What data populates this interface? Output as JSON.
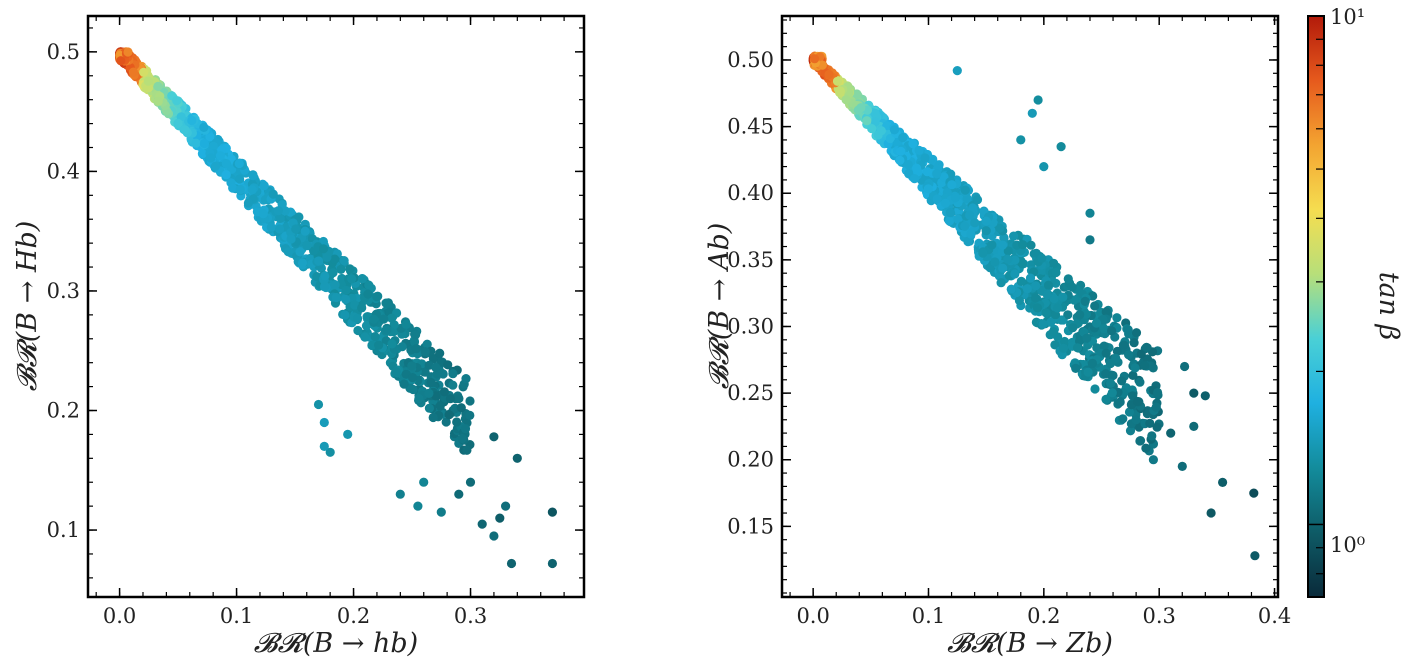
{
  "chart_data": [
    {
      "type": "scatter",
      "id": "left",
      "xlabel": "𝓑𝓡(B → hb)",
      "ylabel": "𝓑𝓡(B → Hb)",
      "xlim": [
        -0.027,
        0.397
      ],
      "ylim": [
        0.044,
        0.53
      ],
      "xticks": [
        0.0,
        0.1,
        0.2,
        0.3
      ],
      "xtick_labels": [
        "0.0",
        "0.1",
        "0.2",
        "0.3"
      ],
      "yticks": [
        0.1,
        0.2,
        0.3,
        0.4,
        0.5
      ],
      "ytick_labels": [
        "0.1",
        "0.2",
        "0.3",
        "0.4",
        "0.5"
      ],
      "constraint": "sum",
      "grid": false,
      "outliers": [
        [
          0.37,
          0.115
        ],
        [
          0.37,
          0.072
        ],
        [
          0.335,
          0.072
        ],
        [
          0.34,
          0.16
        ],
        [
          0.31,
          0.105
        ],
        [
          0.32,
          0.095
        ],
        [
          0.325,
          0.11
        ],
        [
          0.33,
          0.12
        ],
        [
          0.3,
          0.14
        ],
        [
          0.29,
          0.13
        ],
        [
          0.275,
          0.115
        ],
        [
          0.255,
          0.12
        ],
        [
          0.24,
          0.13
        ],
        [
          0.26,
          0.14
        ],
        [
          0.32,
          0.178
        ],
        [
          0.18,
          0.165
        ],
        [
          0.175,
          0.17
        ],
        [
          0.195,
          0.18
        ],
        [
          0.175,
          0.19
        ],
        [
          0.17,
          0.205
        ]
      ]
    },
    {
      "type": "scatter",
      "id": "right",
      "xlabel": "𝓑𝓡(B → Zb)",
      "ylabel": "𝓑𝓡(B → Ab)",
      "xlim": [
        -0.027,
        0.403
      ],
      "ylim": [
        0.097,
        0.533
      ],
      "xticks": [
        0.0,
        0.1,
        0.2,
        0.3,
        0.4
      ],
      "xtick_labels": [
        "0.0",
        "0.1",
        "0.2",
        "0.3",
        "0.4"
      ],
      "yticks": [
        0.15,
        0.2,
        0.25,
        0.3,
        0.35,
        0.4,
        0.45,
        0.5
      ],
      "ytick_labels": [
        "0.15",
        "0.20",
        "0.25",
        "0.30",
        "0.35",
        "0.40",
        "0.45",
        "0.50"
      ],
      "constraint": "spread",
      "grid": false,
      "outliers": [
        [
          0.383,
          0.128
        ],
        [
          0.382,
          0.175
        ],
        [
          0.345,
          0.16
        ],
        [
          0.34,
          0.248
        ],
        [
          0.355,
          0.183
        ],
        [
          0.322,
          0.27
        ],
        [
          0.33,
          0.25
        ],
        [
          0.33,
          0.225
        ],
        [
          0.32,
          0.195
        ],
        [
          0.31,
          0.22
        ],
        [
          0.295,
          0.2
        ],
        [
          0.28,
          0.23
        ],
        [
          0.24,
          0.365
        ],
        [
          0.24,
          0.385
        ],
        [
          0.2,
          0.42
        ],
        [
          0.19,
          0.46
        ],
        [
          0.18,
          0.44
        ],
        [
          0.215,
          0.435
        ],
        [
          0.195,
          0.47
        ],
        [
          0.125,
          0.492
        ]
      ]
    }
  ],
  "colorbar": {
    "label": "tan β",
    "scale": "log",
    "range": [
      0.72,
      10
    ],
    "tick_major_top": "10¹",
    "tick_major_bottom": "10⁰",
    "colors": [
      "#0a2a3a",
      "#0e5b66",
      "#138c9c",
      "#1fb0e0",
      "#4ad0d6",
      "#b7df7a",
      "#f5dd50",
      "#f3a431",
      "#e65a1d",
      "#b21a0a"
    ]
  }
}
